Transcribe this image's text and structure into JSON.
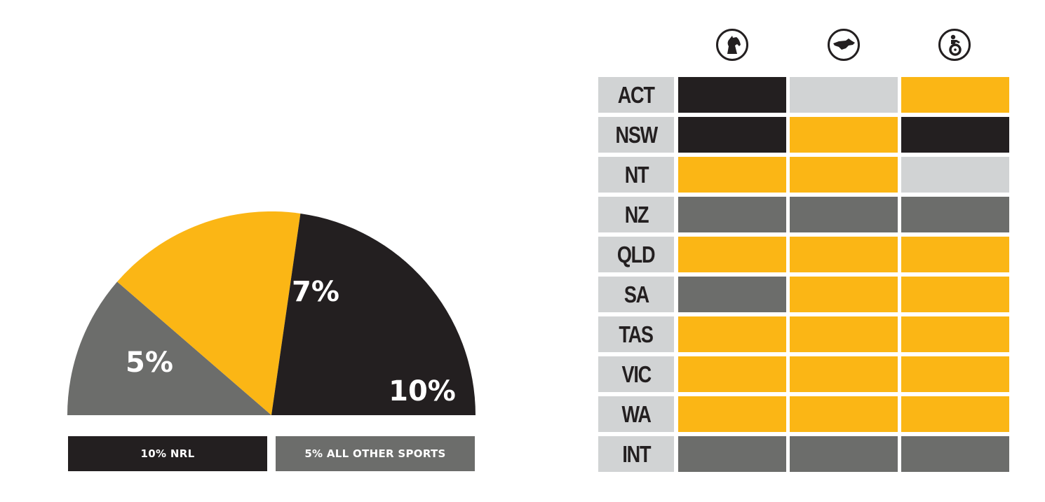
{
  "colors": {
    "yellow": "#fbb615",
    "dark": "#231f20",
    "grey": "#6c6d6b",
    "light": "#d1d3d4"
  },
  "chart_data": [
    {
      "type": "pie",
      "shape": "semicircle",
      "slices": [
        {
          "label": "5%",
          "value": 5,
          "color": "#6c6d6b"
        },
        {
          "label": "7%",
          "value": 7,
          "color": "#fbb615"
        },
        {
          "label": "10%",
          "value": 10,
          "color": "#231f20"
        }
      ],
      "legend": [
        {
          "text": "10% NRL",
          "color": "#231f20"
        },
        {
          "text": "5% ALL OTHER SPORTS",
          "color": "#6c6d6b"
        }
      ]
    },
    {
      "type": "table",
      "columns": [
        "horse-icon",
        "greyhound-icon",
        "harness-icon"
      ],
      "rows": [
        {
          "label": "ACT",
          "cells": [
            "dark",
            "light",
            "yellow"
          ]
        },
        {
          "label": "NSW",
          "cells": [
            "dark",
            "yellow",
            "dark"
          ]
        },
        {
          "label": "NT",
          "cells": [
            "yellow",
            "yellow",
            "light"
          ]
        },
        {
          "label": "NZ",
          "cells": [
            "grey",
            "grey",
            "grey"
          ]
        },
        {
          "label": "QLD",
          "cells": [
            "yellow",
            "yellow",
            "yellow"
          ]
        },
        {
          "label": "SA",
          "cells": [
            "grey",
            "yellow",
            "yellow"
          ]
        },
        {
          "label": "TAS",
          "cells": [
            "yellow",
            "yellow",
            "yellow"
          ]
        },
        {
          "label": "VIC",
          "cells": [
            "yellow",
            "yellow",
            "yellow"
          ]
        },
        {
          "label": "WA",
          "cells": [
            "yellow",
            "yellow",
            "yellow"
          ]
        },
        {
          "label": "INT",
          "cells": [
            "grey",
            "grey",
            "grey"
          ]
        }
      ]
    }
  ]
}
